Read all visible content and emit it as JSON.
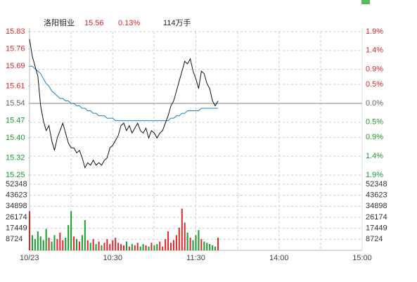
{
  "header": {
    "name": "洛阳钼业",
    "price": "15.56",
    "change": "0.13%",
    "volume": "114万手"
  },
  "chart_data": {
    "type": "intraday",
    "x": [
      0,
      2,
      4,
      6,
      8,
      10,
      12,
      14,
      16,
      18,
      20,
      22,
      24,
      26,
      28,
      30,
      32,
      34,
      36,
      38,
      40,
      42,
      44,
      46,
      48,
      50,
      52,
      54,
      56,
      58,
      60,
      62,
      64,
      66,
      68,
      70,
      72,
      74,
      76,
      78,
      80,
      82,
      84,
      86,
      88,
      90,
      92,
      94,
      96,
      98,
      100,
      102,
      104,
      106,
      108,
      110,
      112,
      114,
      116,
      118,
      120,
      122,
      124,
      126,
      128,
      130,
      132,
      134,
      136
    ],
    "xlim": [
      0,
      240
    ],
    "xticks": [
      {
        "value": 0,
        "label": "10/23"
      },
      {
        "value": 60,
        "label": "10:30"
      },
      {
        "value": 120,
        "label": "11:30"
      },
      {
        "value": 180,
        "label": "14:00"
      },
      {
        "value": 240,
        "label": "15:00"
      }
    ],
    "price": {
      "color": "#111111",
      "values": [
        15.8,
        15.73,
        15.69,
        15.65,
        15.53,
        15.47,
        15.43,
        15.45,
        15.39,
        15.35,
        15.4,
        15.43,
        15.46,
        15.42,
        15.38,
        15.36,
        15.36,
        15.34,
        15.35,
        15.32,
        15.28,
        15.3,
        15.29,
        15.31,
        15.29,
        15.3,
        15.29,
        15.31,
        15.32,
        15.36,
        15.37,
        15.39,
        15.41,
        15.45,
        15.46,
        15.43,
        15.45,
        15.42,
        15.44,
        15.46,
        15.43,
        15.42,
        15.44,
        15.4,
        15.43,
        15.42,
        15.4,
        15.42,
        15.43,
        15.46,
        15.49,
        15.53,
        15.55,
        15.59,
        15.63,
        15.67,
        15.71,
        15.7,
        15.72,
        15.67,
        15.64,
        15.6,
        15.67,
        15.66,
        15.62,
        15.6,
        15.55,
        15.53,
        15.55
      ]
    },
    "average": {
      "color": "#1c7fc2",
      "values": [
        15.69,
        15.69,
        15.68,
        15.67,
        15.66,
        15.64,
        15.62,
        15.61,
        15.59,
        15.58,
        15.57,
        15.56,
        15.56,
        15.55,
        15.55,
        15.54,
        15.54,
        15.53,
        15.53,
        15.52,
        15.52,
        15.51,
        15.51,
        15.5,
        15.5,
        15.49,
        15.49,
        15.49,
        15.48,
        15.48,
        15.48,
        15.47,
        15.47,
        15.47,
        15.47,
        15.47,
        15.47,
        15.47,
        15.47,
        15.47,
        15.47,
        15.47,
        15.47,
        15.47,
        15.47,
        15.47,
        15.47,
        15.47,
        15.47,
        15.47,
        15.47,
        15.48,
        15.48,
        15.49,
        15.49,
        15.5,
        15.5,
        15.51,
        15.51,
        15.51,
        15.51,
        15.51,
        15.52,
        15.52,
        15.52,
        15.52,
        15.52,
        15.52,
        15.52
      ]
    },
    "volume": {
      "values": [
        31000,
        12000,
        9000,
        15000,
        11000,
        8000,
        17000,
        10000,
        7000,
        12000,
        9000,
        14000,
        8000,
        10000,
        20000,
        31000,
        11000,
        9000,
        7000,
        12000,
        24000,
        8000,
        6000,
        9000,
        5000,
        7000,
        4000,
        6000,
        9000,
        5000,
        8000,
        10000,
        6000,
        5000,
        4000,
        7000,
        3000,
        5000,
        4000,
        6000,
        3000,
        5000,
        4000,
        3000,
        6000,
        4000,
        5000,
        7000,
        3000,
        9000,
        15000,
        6000,
        8000,
        12000,
        18000,
        33000,
        22000,
        14000,
        10000,
        8000,
        12000,
        16000,
        9000,
        7000,
        6000,
        5000,
        4000,
        3000,
        10000
      ]
    },
    "up_color": "#e0262c",
    "down_color": "#1a9c2f",
    "flat_color": "#666666",
    "ylim": [
      15.25,
      15.83
    ],
    "yticks": [
      15.83,
      15.76,
      15.69,
      15.61,
      15.54,
      15.47,
      {
        "value": 15.4,
        "label": "15.40"
      },
      15.32,
      15.25
    ],
    "y2lim": [
      -1.9,
      1.9
    ],
    "y2ticks": [
      {
        "value": 1.9,
        "label": "1.9%"
      },
      {
        "value": 1.4,
        "label": "1.4%"
      },
      {
        "value": 0.9,
        "label": "0.9%"
      },
      {
        "value": 0.5,
        "label": "0.5%"
      },
      {
        "value": 0.0,
        "label": "0.0%"
      },
      {
        "value": -0.5,
        "label": "0.5%"
      },
      {
        "value": -0.9,
        "label": "0.9%"
      },
      {
        "value": -1.4,
        "label": "1.4%"
      },
      {
        "value": -1.9,
        "label": "1.9%"
      }
    ],
    "vlim": [
      0,
      52348
    ],
    "vticks": [
      52348,
      43623,
      34898,
      26174,
      17449,
      8724
    ]
  }
}
